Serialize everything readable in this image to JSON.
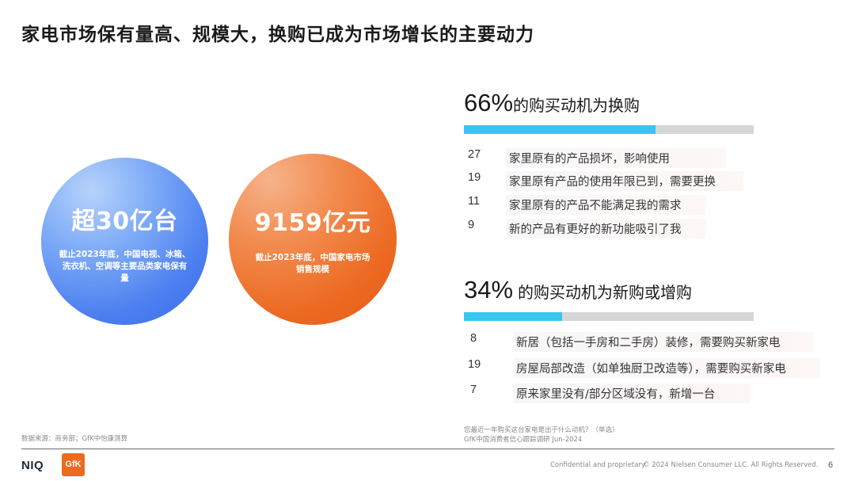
{
  "slide_title": "家电市场保有量高、规模大，换购已成为市场增长的主要动力",
  "circles": [
    {
      "big": "超30亿台",
      "small": "截止2023年底，中国电视、冰箱、洗衣机、空调等主要品类家电保有量"
    },
    {
      "big": "9159亿元",
      "small": "截止2023年底，中国家电市场销售规模"
    }
  ],
  "replacement": {
    "pct": "66%",
    "heading": "的购买动机为换购",
    "share": 0.66,
    "items": [
      {
        "value": "27",
        "label": "家里原有的产品损坏，影响使用"
      },
      {
        "value": "19",
        "label": "家里原有产品的使用年限已到，需要更换"
      },
      {
        "value": "11",
        "label": "家里原有的产品不能满足我的需求"
      },
      {
        "value": "9",
        "label": "新的产品有更好的新功能吸引了我"
      }
    ]
  },
  "new_purchase": {
    "pct": "34%",
    "heading": "的购买动机为新购或增购",
    "share": 0.34,
    "items": [
      {
        "value": "8",
        "label": "新居（包括一手房和二手房）装修，需要购买新家电"
      },
      {
        "value": "19",
        "label": "房屋局部改造（如单独厨卫改造等），需要购买新家电"
      },
      {
        "value": "7",
        "label": "原来家里没有/部分区域没有，新增一台"
      }
    ]
  },
  "footer": {
    "source_left": "数据来源：商务部；GfK中怡康测算",
    "question": "您最近一年购买这台家电是出于什么动机？（单选）",
    "survey": "GfK中国消费者信心跟踪调研 Jun-2024",
    "confidential": "Confidential and proprietary",
    "copyright": "© 2024 Nielsen Consumer LLC. All Rights Reserved.",
    "page": "6",
    "logo_niq": "NIQ",
    "logo_gfk": "GfK"
  },
  "colors": {
    "bar_fill": "#37c6ee",
    "bar_track": "#d6d6d6",
    "circle_blue": "#4c7ff0",
    "circle_orange": "#ec6a23",
    "gfk_orange": "#ee6a1f"
  }
}
